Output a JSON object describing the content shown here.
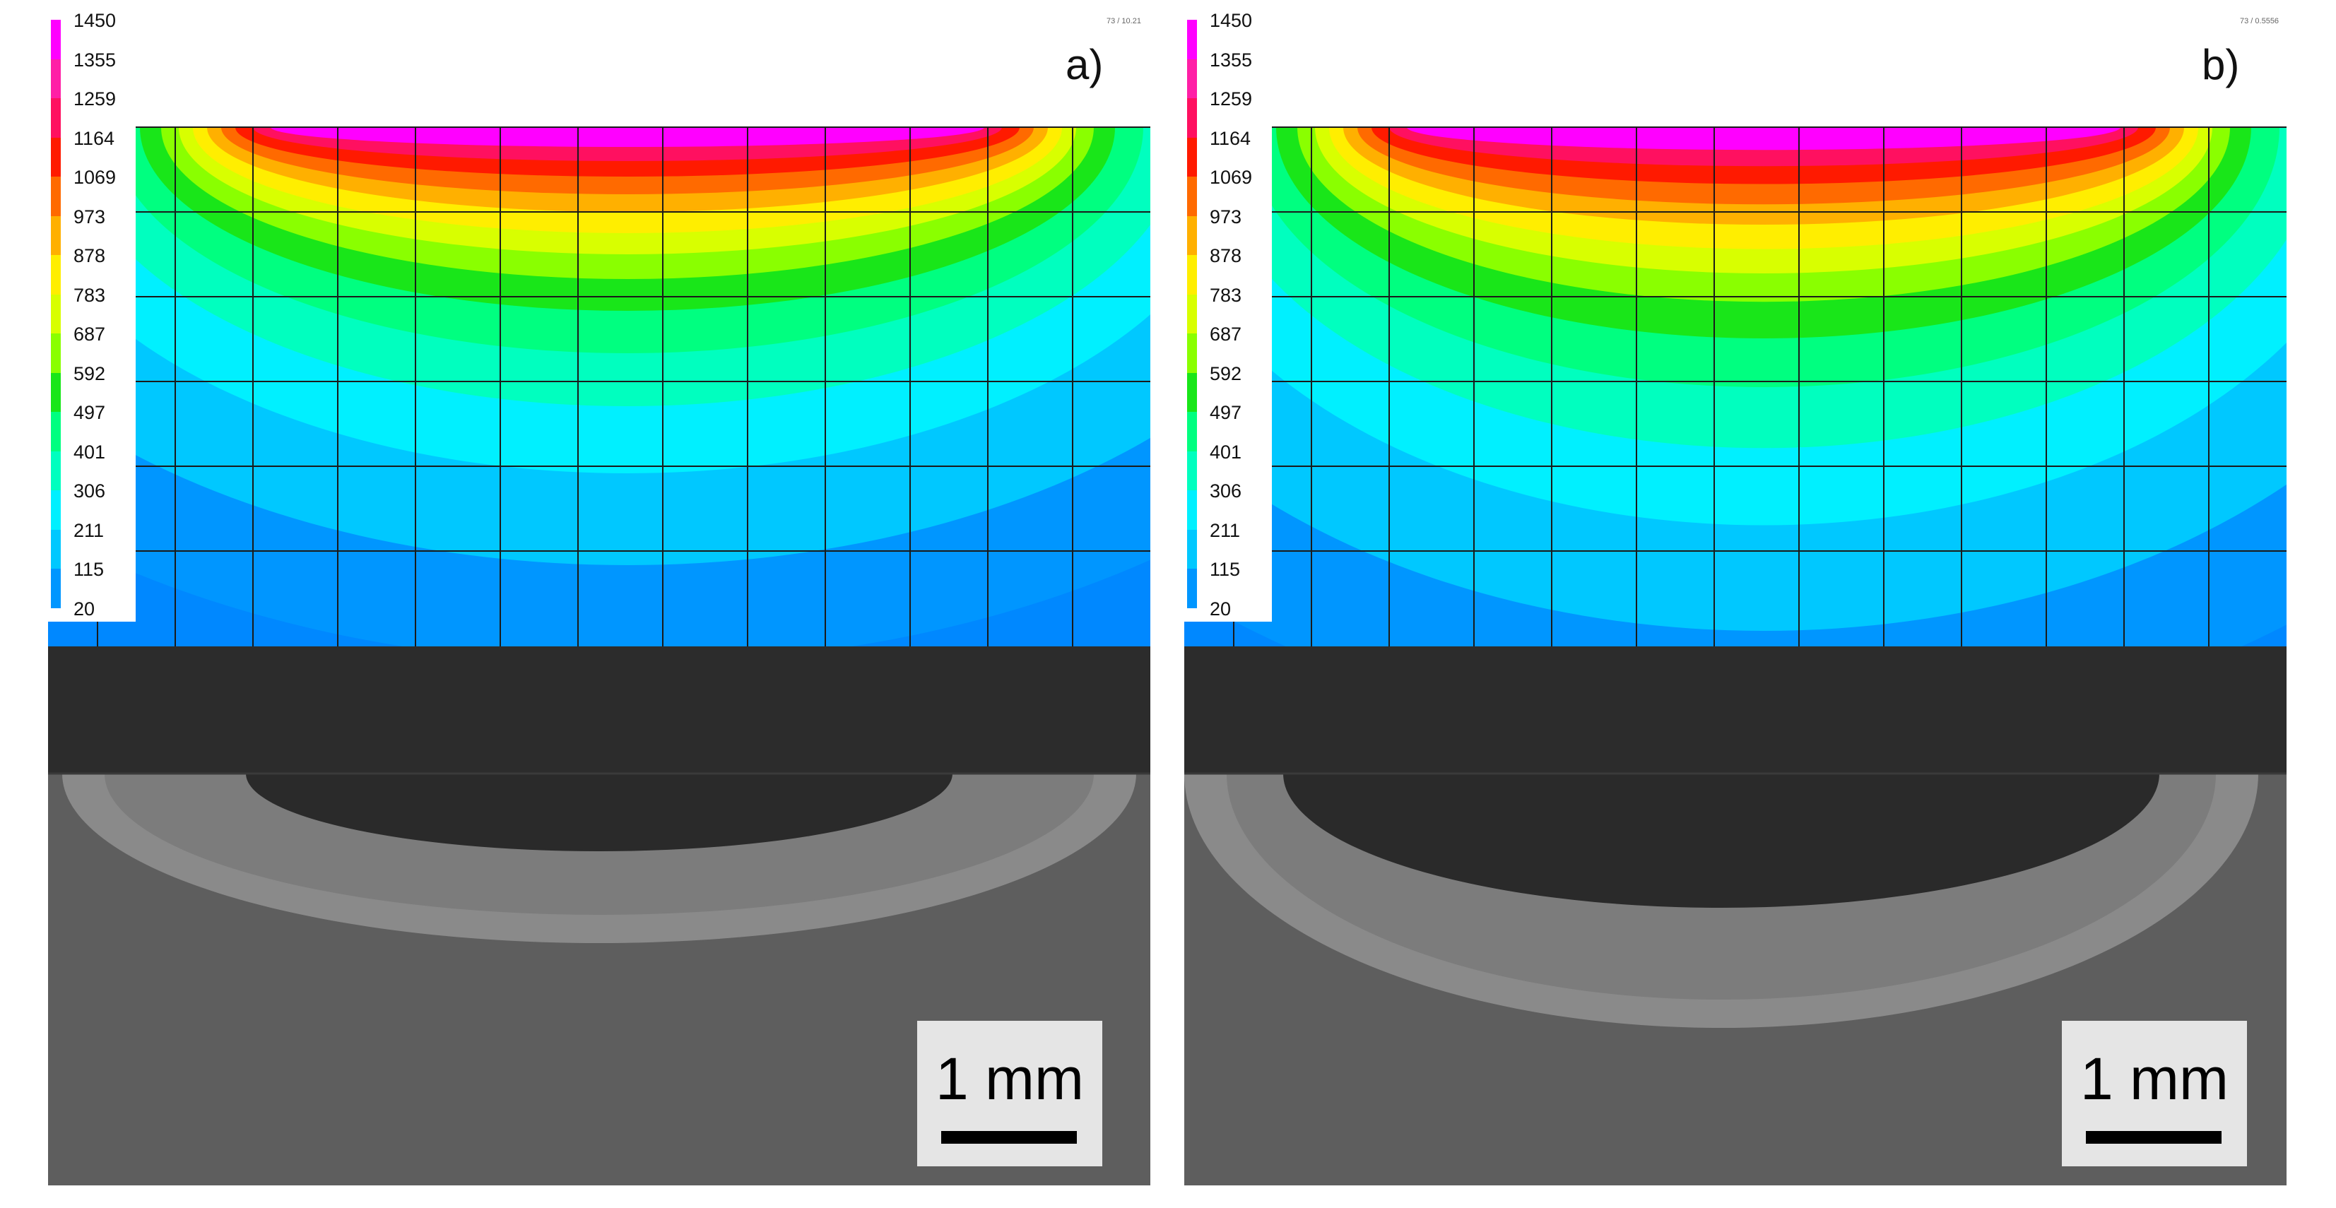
{
  "colorbar": {
    "values": [
      "1450",
      "1355",
      "1259",
      "1164",
      "1069",
      "973",
      "878",
      "783",
      "687",
      "592",
      "497",
      "401",
      "306",
      "211",
      "115",
      "20"
    ],
    "colors": [
      "#ff00ff",
      "#ff1fa6",
      "#ff1060",
      "#ff1a00",
      "#ff6a00",
      "#ffb000",
      "#ffee00",
      "#d8ff00",
      "#8aff00",
      "#19e619",
      "#00ff80",
      "#00ffbf",
      "#00f0ff",
      "#00c8ff",
      "#0096ff",
      "#0000ff"
    ]
  },
  "panels": [
    {
      "id": "a",
      "label": "a)",
      "header_small": "73 / 10.21",
      "scale_text": "1 mm",
      "depth_scale": 1.0
    },
    {
      "id": "b",
      "label": "b)",
      "header_small": "73 / 0.5556",
      "scale_text": "1 mm",
      "depth_scale": 1.15
    }
  ]
}
